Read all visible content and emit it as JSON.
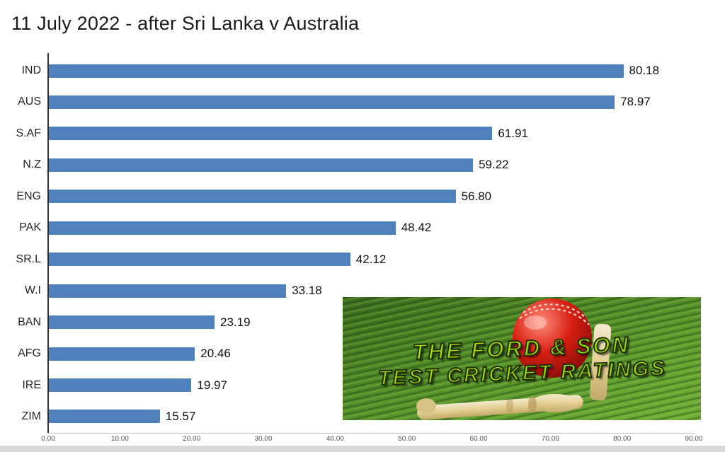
{
  "page": {
    "title": "11 July 2022 - after Sri Lanka v Australia"
  },
  "chart_data": {
    "type": "bar",
    "orientation": "horizontal",
    "title": "11 July 2022 - after Sri Lanka v Australia",
    "categories": [
      "IND",
      "AUS",
      "S.AF",
      "N.Z",
      "ENG",
      "PAK",
      "SR.L",
      "W.I",
      "BAN",
      "AFG",
      "IRE",
      "ZIM"
    ],
    "values": [
      80.18,
      78.97,
      61.91,
      59.22,
      56.8,
      48.42,
      42.12,
      33.18,
      23.19,
      20.46,
      19.97,
      15.57
    ],
    "value_labels": [
      "80.18",
      "78.97",
      "61.91",
      "59.22",
      "56.80",
      "48.42",
      "42.12",
      "33.18",
      "23.19",
      "20.46",
      "19.97",
      "15.57"
    ],
    "xlabel": "",
    "ylabel": "",
    "xlim": [
      0,
      90
    ],
    "x_ticks": [
      "0.00",
      "10.00",
      "20.00",
      "30.00",
      "40.00",
      "50.00",
      "60.00",
      "70.00",
      "80.00",
      "90.00"
    ],
    "bar_color": "#4f81bd",
    "grid": false,
    "legend": false
  },
  "watermark": {
    "line1": "THE FORD & SON",
    "line2": "TEST CRICKET RATINGS",
    "text_color": "#aadd00"
  }
}
